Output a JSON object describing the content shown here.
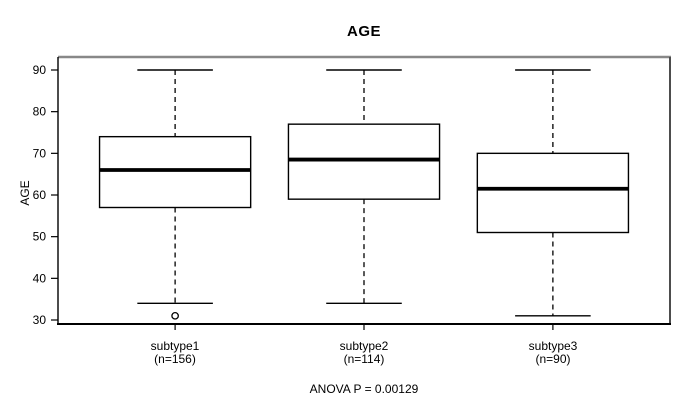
{
  "figure": {
    "title": "AGE",
    "y_axis_label": "AGE",
    "annotation": "ANOVA P = 0.00129"
  },
  "chart_data": {
    "type": "boxplot",
    "title": "AGE",
    "xlabel": "",
    "ylabel": "AGE",
    "ylim": [
      29,
      93
    ],
    "yticks": [
      30,
      40,
      50,
      60,
      70,
      80,
      90
    ],
    "grid": false,
    "legend": false,
    "categories": [
      "subtype1",
      "subtype2",
      "subtype3"
    ],
    "category_sublabels": [
      "(n=156)",
      "(n=114)",
      "(n=90)"
    ],
    "series": [
      {
        "name": "subtype1",
        "whisker_low": 34,
        "q1": 57,
        "median": 66,
        "q3": 74,
        "whisker_high": 90,
        "outliers": [
          31
        ]
      },
      {
        "name": "subtype2",
        "whisker_low": 34,
        "q1": 59,
        "median": 68.5,
        "q3": 77,
        "whisker_high": 90,
        "outliers": []
      },
      {
        "name": "subtype3",
        "whisker_low": 31,
        "q1": 51,
        "median": 61.5,
        "q3": 70,
        "whisker_high": 90,
        "outliers": []
      }
    ],
    "annotation": "ANOVA P = 0.00129",
    "colors": {
      "line": "#000000",
      "box_fill": "#ffffff",
      "frame_top": "#888888",
      "frame_right": "#4d4d4d",
      "background": "#ffffff"
    }
  }
}
